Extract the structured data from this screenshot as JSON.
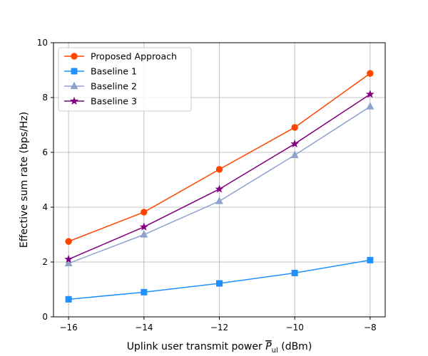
{
  "chart_data": {
    "type": "line",
    "title": "",
    "xlabel_prefix": "Uplink user transmit power ",
    "xlabel_symbol": "P",
    "xlabel_subscript": "ul",
    "xlabel_suffix": " (dBm)",
    "ylabel": "Effective sum rate (bps/Hz)",
    "x": [
      -16,
      -14,
      -12,
      -10,
      -8
    ],
    "xticks": [
      -16,
      -14,
      -12,
      -10,
      -8
    ],
    "xtick_labels": [
      "−16",
      "−14",
      "−12",
      "−10",
      "−8"
    ],
    "yticks": [
      0,
      2,
      4,
      6,
      8,
      10
    ],
    "ytick_labels": [
      "0",
      "2",
      "4",
      "6",
      "8",
      "10"
    ],
    "xlim": [
      -16.4,
      -7.6
    ],
    "ylim": [
      0,
      10
    ],
    "grid": true,
    "legend_position": "top-left",
    "series": [
      {
        "name": "Proposed Approach",
        "color": "#ff4500",
        "marker": "circle",
        "values": [
          2.75,
          3.82,
          5.38,
          6.91,
          8.88
        ]
      },
      {
        "name": "Baseline 1",
        "color": "#1e90ff",
        "marker": "square",
        "values": [
          0.64,
          0.9,
          1.22,
          1.6,
          2.07
        ]
      },
      {
        "name": "Baseline 2",
        "color": "#8ea3cc",
        "marker": "triangle",
        "values": [
          1.95,
          3.0,
          4.22,
          5.9,
          7.67
        ]
      },
      {
        "name": "Baseline 3",
        "color": "#800080",
        "marker": "star",
        "values": [
          2.1,
          3.28,
          4.66,
          6.31,
          8.12
        ]
      }
    ]
  }
}
